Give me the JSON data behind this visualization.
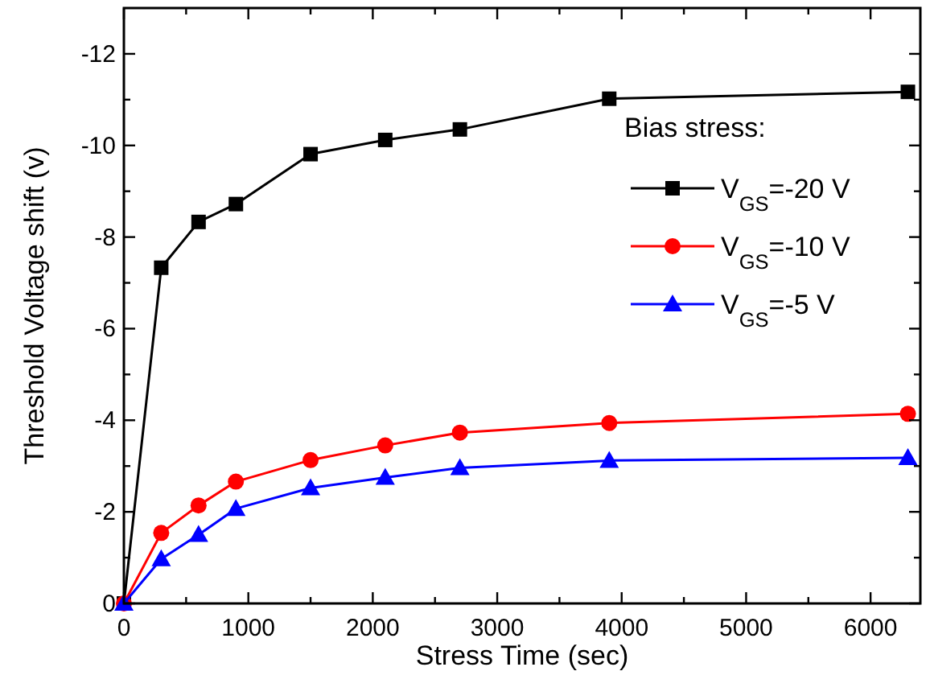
{
  "chart_data": {
    "type": "line",
    "xlabel": "Stress Time (sec)",
    "ylabel": "Threshold Voltage shift (v)",
    "legend_title": "Bias stress:",
    "legend": "right",
    "line_style": "solid",
    "grid": false,
    "x": [
      0,
      300,
      600,
      900,
      1500,
      2100,
      2700,
      3900,
      6300
    ],
    "series": [
      {
        "name": "V$_{GS}$=-20 V",
        "color": "#000000",
        "marker": "square",
        "values": [
          0,
          -7.33,
          -8.33,
          -8.72,
          -9.81,
          -10.12,
          -10.35,
          -11.02,
          -11.17
        ]
      },
      {
        "name": "V$_{GS}$=-10 V",
        "color": "#ff0000",
        "marker": "circle",
        "values": [
          0,
          -1.54,
          -2.14,
          -2.66,
          -3.13,
          -3.45,
          -3.73,
          -3.94,
          -4.14
        ]
      },
      {
        "name": "V$_{GS}$=-5 V",
        "color": "#0000ff",
        "marker": "triangle",
        "values": [
          0,
          -0.97,
          -1.5,
          -2.07,
          -2.52,
          -2.75,
          -2.96,
          -3.12,
          -3.18
        ]
      }
    ],
    "xlim": [
      0,
      6400
    ],
    "ylim": [
      0,
      -13
    ],
    "xticks": [
      0,
      {
        "value": 500,
        "label": null
      },
      1000,
      {
        "value": 1500,
        "label": null
      },
      2000,
      {
        "value": 2500,
        "label": null
      },
      3000,
      {
        "value": 3500,
        "label": null
      },
      4000,
      {
        "value": 4500,
        "label": null
      },
      5000,
      {
        "value": 5500,
        "label": null
      },
      6000
    ],
    "yticks": [
      0,
      {
        "value": -1,
        "label": null
      },
      -2,
      {
        "value": -3,
        "label": null
      },
      -4,
      {
        "value": -5,
        "label": null
      },
      -6,
      {
        "value": -7,
        "label": null
      },
      -8,
      {
        "value": -9,
        "label": null
      },
      -10,
      {
        "value": -11,
        "label": null
      },
      -12
    ]
  }
}
